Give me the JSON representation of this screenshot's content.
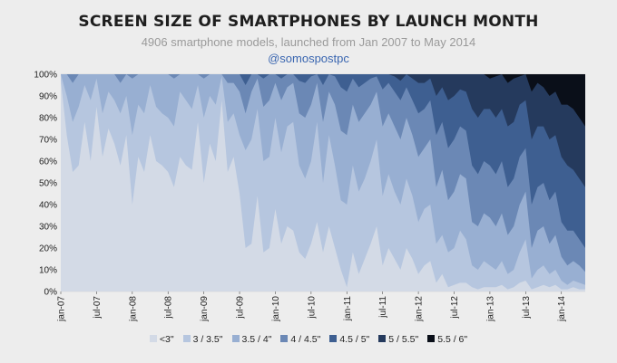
{
  "chart_data": {
    "type": "area",
    "stacked": true,
    "normalized": true,
    "title": "SCREEN SIZE OF SMARTPHONES BY LAUNCH MONTH",
    "subtitle": "4906 smartphone models, launched from Jan 2007 to May 2014",
    "credit": "@somospostpc",
    "y_ticks": [
      "0%",
      "10%",
      "20%",
      "30%",
      "40%",
      "50%",
      "60%",
      "70%",
      "80%",
      "90%",
      "100%"
    ],
    "ylim": [
      0,
      100
    ],
    "grid": true,
    "legend_position": "bottom",
    "x_ticks": [
      "jan-07",
      "jul-07",
      "jan-08",
      "jul-08",
      "jan-09",
      "jul-09",
      "jan-10",
      "jul-10",
      "jan-11",
      "jul-11",
      "jan-12",
      "jul-12",
      "jan-13",
      "jul-13",
      "jan-14"
    ],
    "x_start": "2007-01",
    "x_end": "2014-05",
    "months": [
      "2007-01",
      "2007-02",
      "2007-03",
      "2007-04",
      "2007-05",
      "2007-06",
      "2007-07",
      "2007-08",
      "2007-09",
      "2007-10",
      "2007-11",
      "2007-12",
      "2008-01",
      "2008-02",
      "2008-03",
      "2008-04",
      "2008-05",
      "2008-06",
      "2008-07",
      "2008-08",
      "2008-09",
      "2008-10",
      "2008-11",
      "2008-12",
      "2009-01",
      "2009-02",
      "2009-03",
      "2009-04",
      "2009-05",
      "2009-06",
      "2009-07",
      "2009-08",
      "2009-09",
      "2009-10",
      "2009-11",
      "2009-12",
      "2010-01",
      "2010-02",
      "2010-03",
      "2010-04",
      "2010-05",
      "2010-06",
      "2010-07",
      "2010-08",
      "2010-09",
      "2010-10",
      "2010-11",
      "2010-12",
      "2011-01",
      "2011-02",
      "2011-03",
      "2011-04",
      "2011-05",
      "2011-06",
      "2011-07",
      "2011-08",
      "2011-09",
      "2011-10",
      "2011-11",
      "2011-12",
      "2012-01",
      "2012-02",
      "2012-03",
      "2012-04",
      "2012-05",
      "2012-06",
      "2012-07",
      "2012-08",
      "2012-09",
      "2012-10",
      "2012-11",
      "2012-12",
      "2013-01",
      "2013-02",
      "2013-03",
      "2013-04",
      "2013-05",
      "2013-06",
      "2013-07",
      "2013-08",
      "2013-09",
      "2013-10",
      "2013-11",
      "2013-12",
      "2014-01",
      "2014-02",
      "2014-03",
      "2014-04",
      "2014-05"
    ],
    "cumulative_boundaries_note": "upper edge (%) of each stacked band, bottom to top",
    "series": [
      {
        "name": "<3\"",
        "color": "#d3dae6",
        "values": [
          97,
          72,
          55,
          58,
          78,
          60,
          85,
          62,
          75,
          68,
          58,
          72,
          40,
          62,
          55,
          72,
          60,
          58,
          55,
          48,
          62,
          58,
          56,
          78,
          50,
          68,
          60,
          88,
          55,
          62,
          45,
          20,
          22,
          44,
          18,
          20,
          38,
          22,
          30,
          28,
          18,
          15,
          22,
          32,
          18,
          30,
          20,
          10,
          2,
          18,
          8,
          15,
          22,
          30,
          12,
          20,
          15,
          10,
          20,
          15,
          8,
          12,
          14,
          4,
          8,
          2,
          3,
          4,
          4,
          2,
          1,
          2,
          2,
          2,
          3,
          1,
          2,
          4,
          5,
          1,
          2,
          3,
          2,
          3,
          1,
          1,
          2,
          1,
          1
        ]
      },
      {
        "name": "3 / 3.5\"",
        "color": "#b6c6df",
        "values": [
          100,
          90,
          78,
          85,
          95,
          88,
          98,
          82,
          92,
          88,
          82,
          90,
          72,
          86,
          82,
          95,
          85,
          82,
          80,
          76,
          92,
          88,
          84,
          95,
          80,
          90,
          86,
          99,
          78,
          82,
          72,
          65,
          70,
          84,
          60,
          62,
          80,
          64,
          76,
          78,
          58,
          52,
          60,
          78,
          50,
          72,
          58,
          42,
          40,
          58,
          46,
          52,
          60,
          70,
          44,
          54,
          46,
          40,
          52,
          44,
          32,
          38,
          40,
          22,
          26,
          18,
          20,
          28,
          24,
          12,
          10,
          14,
          12,
          10,
          14,
          8,
          10,
          18,
          24,
          6,
          10,
          12,
          8,
          10,
          5,
          3,
          5,
          4,
          3
        ]
      },
      {
        "name": "3.5 / 4\"",
        "color": "#98afd2",
        "values": [
          100,
          100,
          96,
          100,
          100,
          100,
          100,
          100,
          100,
          100,
          96,
          100,
          98,
          100,
          100,
          100,
          100,
          100,
          100,
          98,
          100,
          100,
          100,
          100,
          98,
          100,
          100,
          100,
          96,
          96,
          92,
          82,
          92,
          98,
          85,
          88,
          96,
          88,
          94,
          96,
          82,
          80,
          86,
          96,
          78,
          92,
          86,
          74,
          72,
          86,
          78,
          82,
          86,
          92,
          76,
          82,
          76,
          70,
          80,
          72,
          62,
          66,
          70,
          48,
          56,
          42,
          46,
          54,
          52,
          32,
          30,
          36,
          34,
          30,
          36,
          26,
          30,
          40,
          46,
          20,
          28,
          30,
          22,
          26,
          16,
          12,
          14,
          12,
          9
        ]
      },
      {
        "name": "4 / 4.5\"",
        "color": "#6b88b5",
        "values": [
          100,
          100,
          100,
          100,
          100,
          100,
          100,
          100,
          100,
          100,
          100,
          100,
          100,
          100,
          100,
          100,
          100,
          100,
          100,
          100,
          100,
          100,
          100,
          100,
          100,
          100,
          100,
          100,
          100,
          100,
          100,
          95,
          100,
          100,
          98,
          100,
          100,
          98,
          100,
          100,
          97,
          96,
          99,
          100,
          95,
          100,
          99,
          94,
          92,
          98,
          94,
          96,
          98,
          99,
          93,
          96,
          92,
          88,
          94,
          88,
          82,
          84,
          88,
          72,
          78,
          66,
          70,
          76,
          74,
          58,
          54,
          60,
          58,
          54,
          60,
          48,
          52,
          62,
          66,
          40,
          48,
          50,
          42,
          46,
          32,
          28,
          28,
          24,
          20
        ]
      },
      {
        "name": "4.5 / 5\"",
        "color": "#3e5f91",
        "values": [
          100,
          100,
          100,
          100,
          100,
          100,
          100,
          100,
          100,
          100,
          100,
          100,
          100,
          100,
          100,
          100,
          100,
          100,
          100,
          100,
          100,
          100,
          100,
          100,
          100,
          100,
          100,
          100,
          100,
          100,
          100,
          100,
          100,
          100,
          100,
          100,
          100,
          100,
          100,
          100,
          100,
          100,
          100,
          100,
          100,
          100,
          100,
          100,
          100,
          100,
          100,
          100,
          100,
          100,
          100,
          100,
          99,
          97,
          100,
          98,
          96,
          96,
          98,
          90,
          94,
          88,
          90,
          93,
          92,
          84,
          80,
          84,
          84,
          80,
          84,
          76,
          78,
          86,
          88,
          70,
          76,
          76,
          70,
          72,
          62,
          58,
          56,
          52,
          48
        ]
      },
      {
        "name": "5 / 5.5\"",
        "color": "#253a5d",
        "values": [
          100,
          100,
          100,
          100,
          100,
          100,
          100,
          100,
          100,
          100,
          100,
          100,
          100,
          100,
          100,
          100,
          100,
          100,
          100,
          100,
          100,
          100,
          100,
          100,
          100,
          100,
          100,
          100,
          100,
          100,
          100,
          100,
          100,
          100,
          100,
          100,
          100,
          100,
          100,
          100,
          100,
          100,
          100,
          100,
          100,
          100,
          100,
          100,
          100,
          100,
          100,
          100,
          100,
          100,
          100,
          100,
          100,
          100,
          100,
          100,
          100,
          100,
          100,
          100,
          100,
          100,
          100,
          100,
          100,
          100,
          100,
          100,
          98,
          99,
          100,
          96,
          98,
          99,
          100,
          92,
          96,
          94,
          90,
          92,
          86,
          86,
          84,
          80,
          76
        ]
      },
      {
        "name": "5.5 / 6\"",
        "color": "#0a0f19",
        "values": [
          100,
          100,
          100,
          100,
          100,
          100,
          100,
          100,
          100,
          100,
          100,
          100,
          100,
          100,
          100,
          100,
          100,
          100,
          100,
          100,
          100,
          100,
          100,
          100,
          100,
          100,
          100,
          100,
          100,
          100,
          100,
          100,
          100,
          100,
          100,
          100,
          100,
          100,
          100,
          100,
          100,
          100,
          100,
          100,
          100,
          100,
          100,
          100,
          100,
          100,
          100,
          100,
          100,
          100,
          100,
          100,
          100,
          100,
          100,
          100,
          100,
          100,
          100,
          100,
          100,
          100,
          100,
          100,
          100,
          100,
          100,
          100,
          100,
          100,
          100,
          100,
          100,
          100,
          100,
          100,
          100,
          100,
          100,
          100,
          100,
          100,
          100,
          100,
          100
        ]
      }
    ]
  }
}
